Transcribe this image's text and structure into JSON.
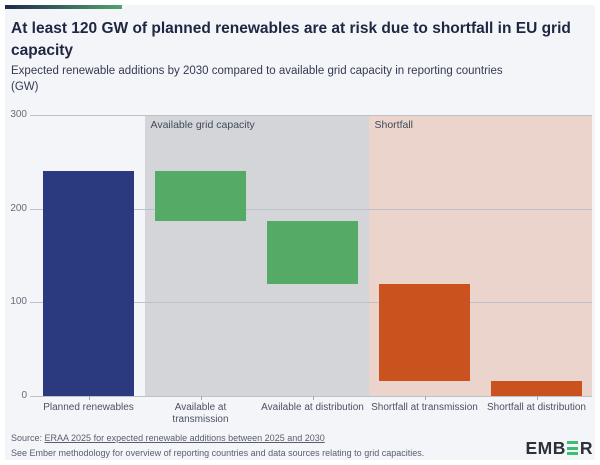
{
  "header": {
    "title_lines": [
      "At least 120 GW of planned renewables are at risk due to shortfall in EU grid",
      "capacity"
    ],
    "subtitle_lines": [
      "Expected renewable additions by 2030 compared to available grid capacity in reporting countries",
      "(GW)"
    ]
  },
  "brand": {
    "accent_gradient_from": "#1f2a4d",
    "accent_gradient_to": "#4fa56b",
    "logo_text_pre": "EMB",
    "logo_text_post": "R",
    "logo_green": "#3fbe71",
    "logo_dark": "#2c3037"
  },
  "chart_data": {
    "type": "bar",
    "subtype": "waterfall",
    "unit": "GW",
    "ylim": [
      0,
      300
    ],
    "yticks": [
      0,
      100,
      200,
      300
    ],
    "grid": true,
    "legend": "none",
    "categories": [
      "Planned renewables",
      "Available at\ntransmission",
      "Available at distribution",
      "Shortfall at transmission",
      "Shortfall at distribution"
    ],
    "bars": [
      {
        "label": "Planned renewables",
        "from": 0,
        "to": 240,
        "value": 240,
        "color": "#2b3a7e"
      },
      {
        "label": "Available at transmission",
        "from": 187,
        "to": 240,
        "value": 53,
        "color": "#55ab66"
      },
      {
        "label": "Available at distribution",
        "from": 120,
        "to": 187,
        "value": 67,
        "color": "#55ab66"
      },
      {
        "label": "Shortfall at transmission",
        "from": 16,
        "to": 120,
        "value": 104,
        "color": "#c9521f"
      },
      {
        "label": "Shortfall at distribution",
        "from": 0,
        "to": 16,
        "value": 16,
        "color": "#c9521f"
      }
    ],
    "regions": [
      {
        "label": "Available grid capacity",
        "color": "#d3d5d8",
        "start_index": 1,
        "end_index": 2
      },
      {
        "label": "Shortfall",
        "color": "#ead4cb",
        "start_index": 3,
        "end_index": 4
      }
    ]
  },
  "footer": {
    "source_prefix": "Source: ",
    "source_link": "ERAA 2025 for expected renewable additions between 2025 and 2030",
    "note": "See Ember methodology for overview of reporting countries and data sources relating to grid capacities."
  }
}
